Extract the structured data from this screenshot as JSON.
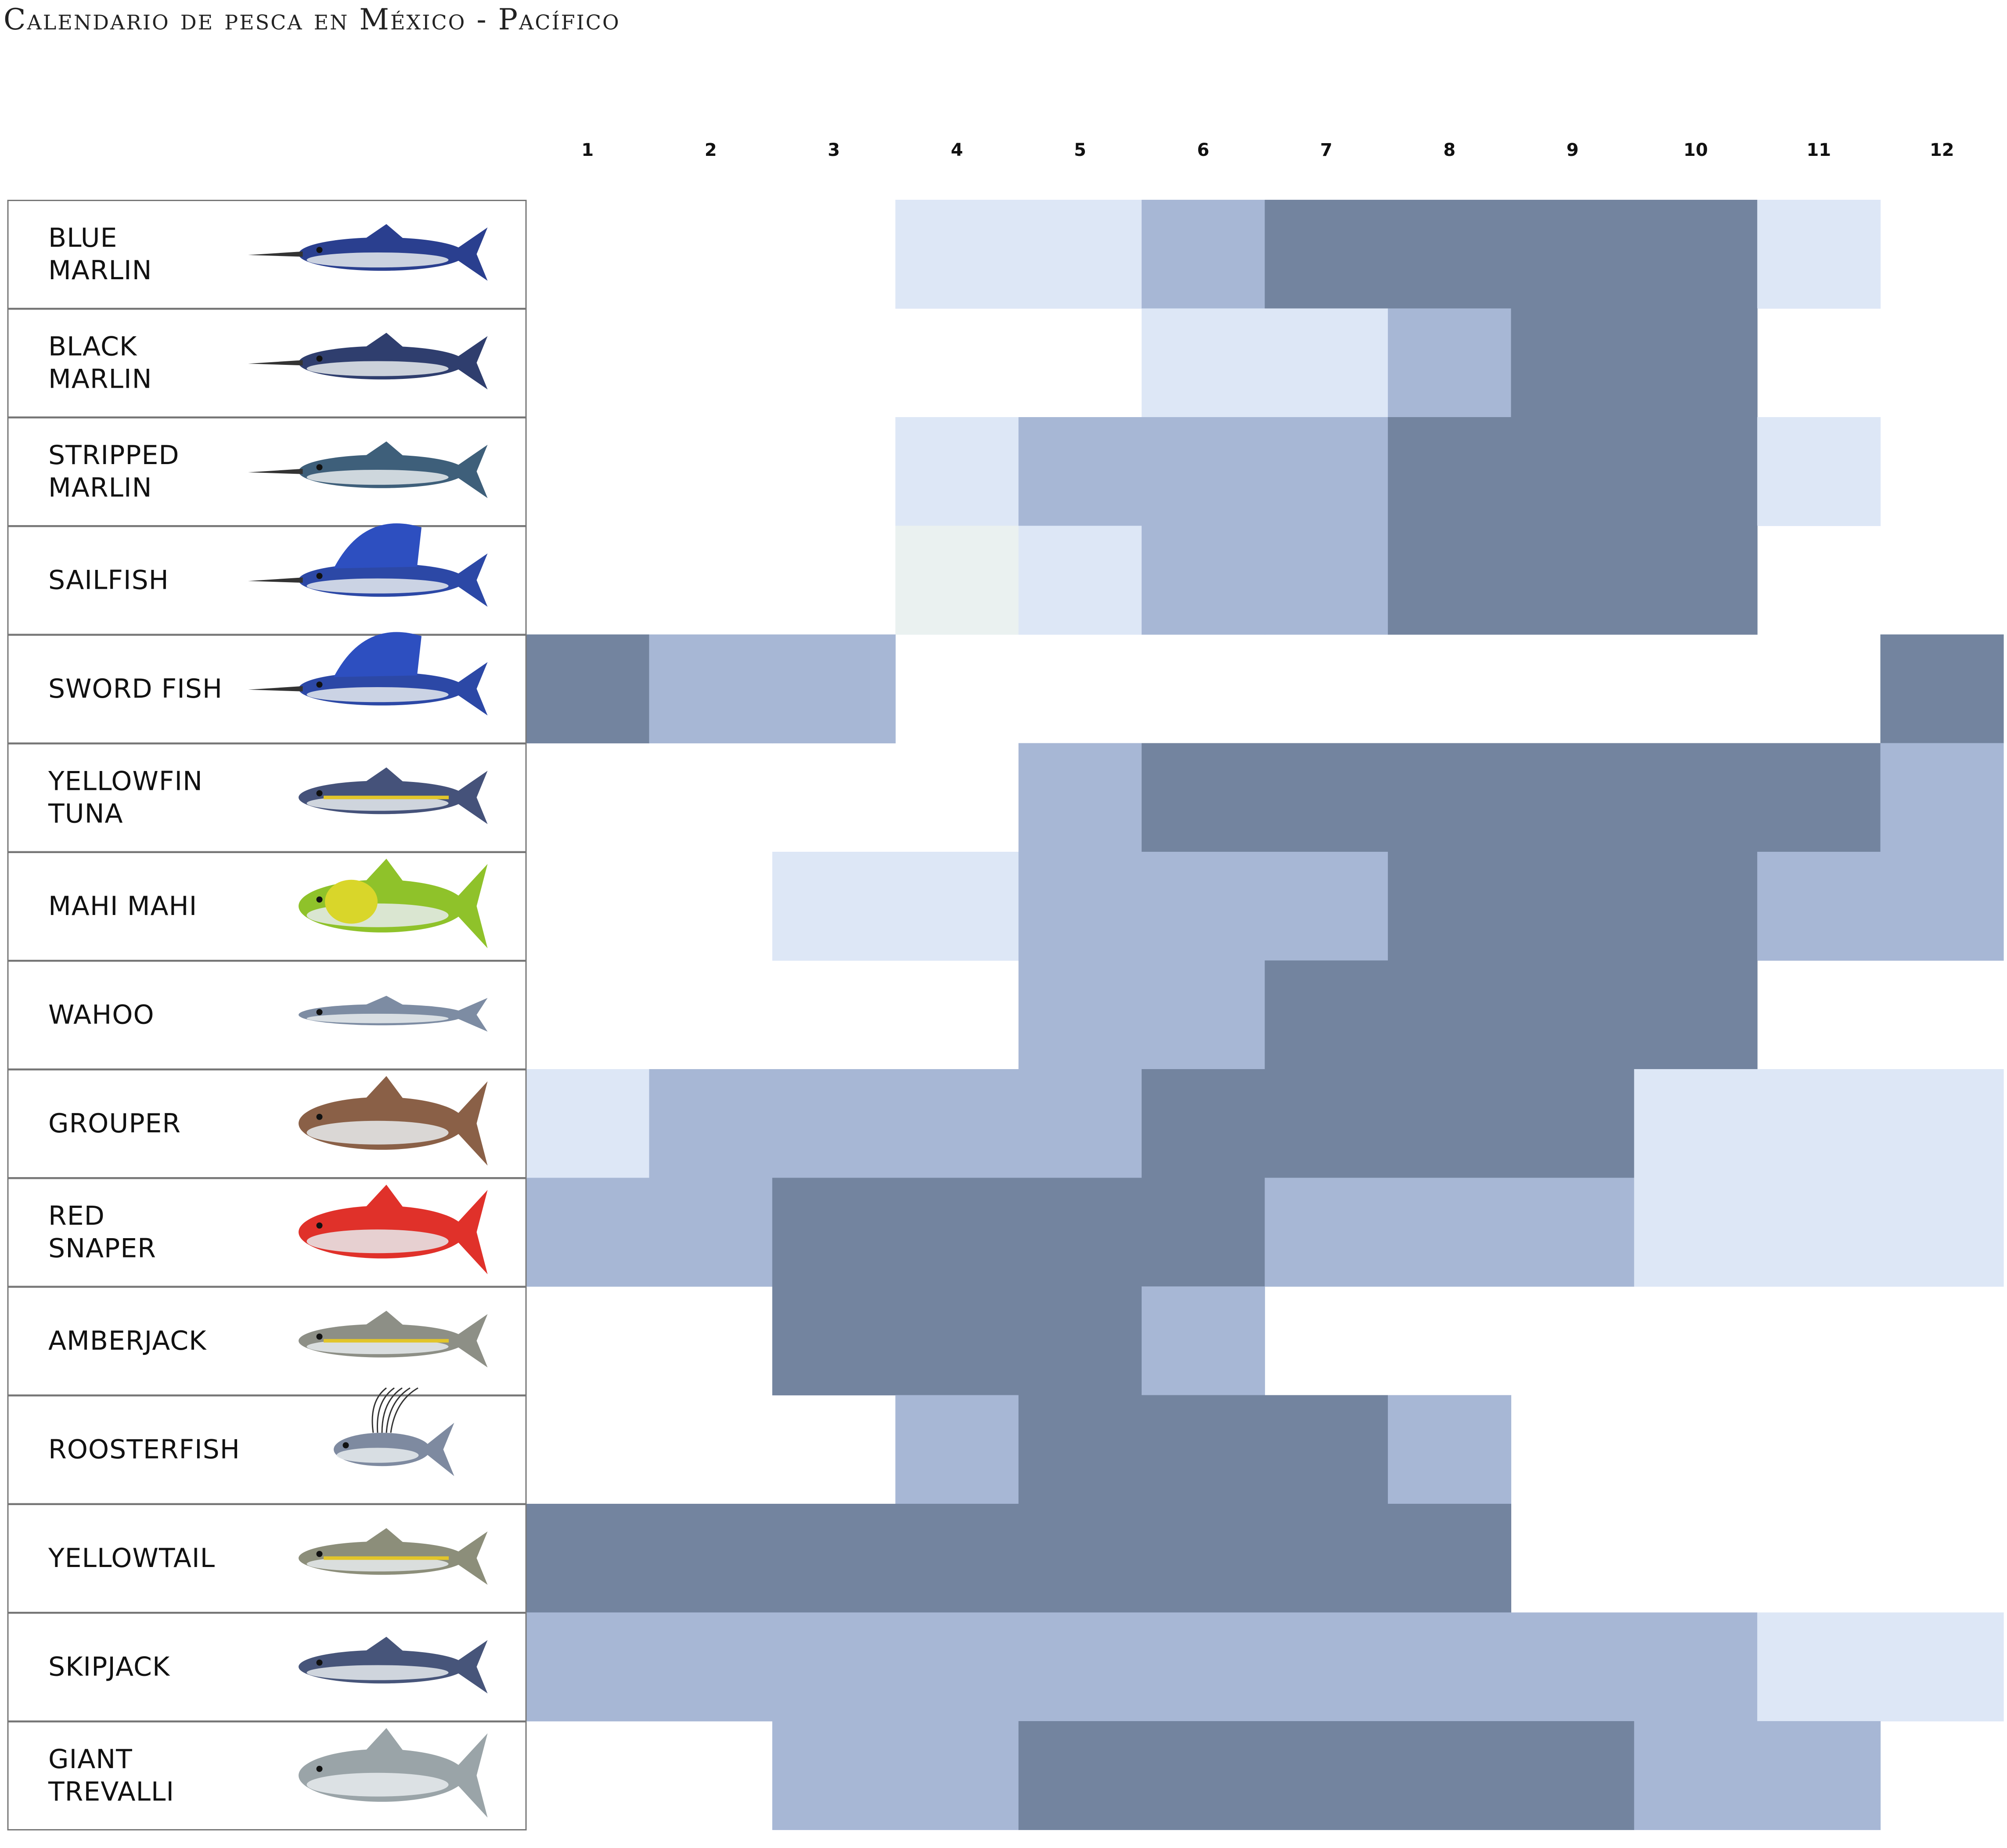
{
  "title": "Calendario de pesca en México - Pacífico",
  "colors": {
    "none": "#ffffff",
    "low": "#dde7f6",
    "faint": "#eaf1f0",
    "medium": "#a7b7d5",
    "high": "#73849f",
    "label_border": "#777777"
  },
  "chart_data": {
    "type": "heatmap",
    "title": "Calendario de pesca en México - Pacífico",
    "x": [
      1,
      2,
      3,
      4,
      5,
      6,
      7,
      8,
      9,
      10,
      11,
      12
    ],
    "xlabel": "",
    "ylabel": "",
    "scale": {
      "0": "none",
      "1": "low",
      "2": "medium",
      "3": "high",
      "f": "faint"
    },
    "series": [
      {
        "name": "BLUE MARLIN",
        "lines": [
          "BLUE",
          "MARLIN"
        ],
        "icon": "blue-marlin-icon",
        "values": [
          0,
          0,
          0,
          1,
          1,
          2,
          3,
          3,
          3,
          3,
          1,
          0
        ]
      },
      {
        "name": "BLACK MARLIN",
        "lines": [
          "BLACK",
          "MARLIN"
        ],
        "icon": "black-marlin-icon",
        "values": [
          0,
          0,
          0,
          0,
          0,
          1,
          1,
          2,
          3,
          3,
          0,
          0
        ]
      },
      {
        "name": "STRIPPED MARLIN",
        "lines": [
          "STRIPPED",
          "MARLIN"
        ],
        "icon": "striped-marlin-icon",
        "values": [
          0,
          0,
          0,
          1,
          2,
          2,
          2,
          3,
          3,
          3,
          1,
          0
        ]
      },
      {
        "name": "SAILFISH",
        "lines": [
          "SAILFISH"
        ],
        "icon": "sailfish-icon",
        "values": [
          0,
          0,
          0,
          "f",
          1,
          2,
          2,
          3,
          3,
          3,
          0,
          0
        ]
      },
      {
        "name": "SWORD FISH",
        "lines": [
          "SWORD FISH"
        ],
        "icon": "swordfish-icon",
        "values": [
          3,
          2,
          2,
          0,
          0,
          0,
          0,
          0,
          0,
          0,
          0,
          3
        ]
      },
      {
        "name": "YELLOWFIN TUNA",
        "lines": [
          "YELLOWFIN",
          "TUNA"
        ],
        "icon": "yellowfin-tuna-icon",
        "values": [
          0,
          0,
          0,
          0,
          2,
          3,
          3,
          3,
          3,
          3,
          3,
          2
        ]
      },
      {
        "name": "MAHI MAHI",
        "lines": [
          "MAHI MAHI"
        ],
        "icon": "mahi-mahi-icon",
        "values": [
          0,
          0,
          1,
          1,
          2,
          2,
          2,
          3,
          3,
          3,
          2,
          2
        ]
      },
      {
        "name": "WAHOO",
        "lines": [
          "WAHOO"
        ],
        "icon": "wahoo-icon",
        "values": [
          0,
          0,
          0,
          0,
          2,
          2,
          3,
          3,
          3,
          3,
          0,
          0
        ]
      },
      {
        "name": "GROUPER",
        "lines": [
          "GROUPER"
        ],
        "icon": "grouper-icon",
        "values": [
          1,
          2,
          2,
          2,
          2,
          3,
          3,
          3,
          3,
          1,
          1,
          1
        ]
      },
      {
        "name": "RED SNAPER",
        "lines": [
          "RED",
          "SNAPER"
        ],
        "icon": "red-snapper-icon",
        "values": [
          2,
          2,
          3,
          3,
          3,
          3,
          2,
          2,
          2,
          1,
          1,
          1
        ]
      },
      {
        "name": "AMBERJACK",
        "lines": [
          "AMBERJACK"
        ],
        "icon": "amberjack-icon",
        "values": [
          0,
          0,
          3,
          3,
          3,
          2,
          0,
          0,
          0,
          0,
          0,
          0
        ]
      },
      {
        "name": "ROOSTERFISH",
        "lines": [
          "ROOSTERFISH"
        ],
        "icon": "roosterfish-icon",
        "values": [
          0,
          0,
          0,
          2,
          3,
          3,
          3,
          2,
          0,
          0,
          0,
          0
        ]
      },
      {
        "name": "YELLOWTAIL",
        "lines": [
          "YELLOWTAIL"
        ],
        "icon": "yellowtail-icon",
        "values": [
          3,
          3,
          3,
          3,
          3,
          3,
          3,
          3,
          0,
          0,
          0,
          0
        ]
      },
      {
        "name": "SKIPJACK",
        "lines": [
          "SKIPJACK"
        ],
        "icon": "skipjack-icon",
        "values": [
          2,
          2,
          2,
          2,
          2,
          2,
          2,
          2,
          2,
          2,
          1,
          1
        ]
      },
      {
        "name": "GIANT TREVALLI",
        "lines": [
          "GIANT",
          "TREVALLI"
        ],
        "icon": "giant-trevally-icon",
        "values": [
          0,
          0,
          2,
          2,
          3,
          3,
          3,
          3,
          3,
          2,
          2,
          0
        ]
      }
    ]
  }
}
